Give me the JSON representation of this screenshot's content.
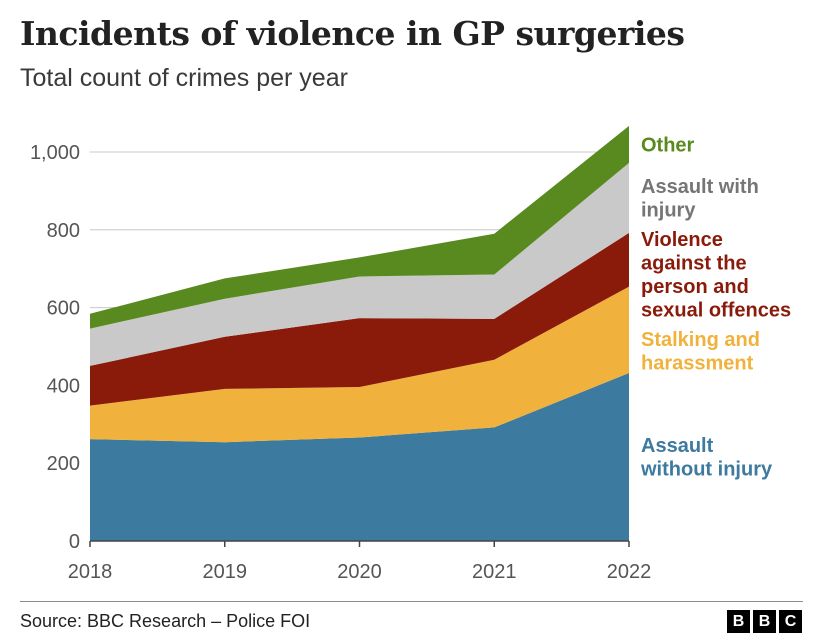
{
  "title": "Incidents of violence in GP surgeries",
  "subtitle": "Total count of crimes per year",
  "source": "Source: BBC Research – Police FOI",
  "logo": [
    "B",
    "B",
    "C"
  ],
  "chart_data": {
    "type": "area",
    "stacked": true,
    "categories": [
      "2018",
      "2019",
      "2020",
      "2021",
      "2022"
    ],
    "ylim": [
      0,
      1000
    ],
    "yticks": [
      0,
      200,
      400,
      600,
      800,
      1000
    ],
    "ytick_labels": [
      "0",
      "200",
      "400",
      "600",
      "800",
      "1,000"
    ],
    "grid": true,
    "series": [
      {
        "name": "Assault without injury",
        "label_lines": [
          "Assault",
          "without injury"
        ],
        "color": "#3d7a9f",
        "values": [
          262,
          254,
          266,
          292,
          432
        ]
      },
      {
        "name": "Stalking and harassment",
        "label_lines": [
          "Stalking and",
          "harassment"
        ],
        "color": "#f0b23c",
        "values": [
          86,
          137,
          130,
          174,
          222
        ]
      },
      {
        "name": "Violence against the person and sexual offences",
        "label_lines": [
          "Violence",
          "against the",
          "person and",
          "sexual offences"
        ],
        "color": "#8a1b0b",
        "values": [
          102,
          134,
          177,
          105,
          138
        ]
      },
      {
        "name": "Assault with injury",
        "label_lines": [
          "Assault with",
          "injury"
        ],
        "label_color": "#757575",
        "color": "#c9c9c9",
        "values": [
          96,
          98,
          107,
          114,
          180
        ]
      },
      {
        "name": "Other",
        "label_lines": [
          "Other"
        ],
        "color": "#588a1f",
        "values": [
          38,
          52,
          49,
          105,
          95
        ]
      }
    ]
  }
}
